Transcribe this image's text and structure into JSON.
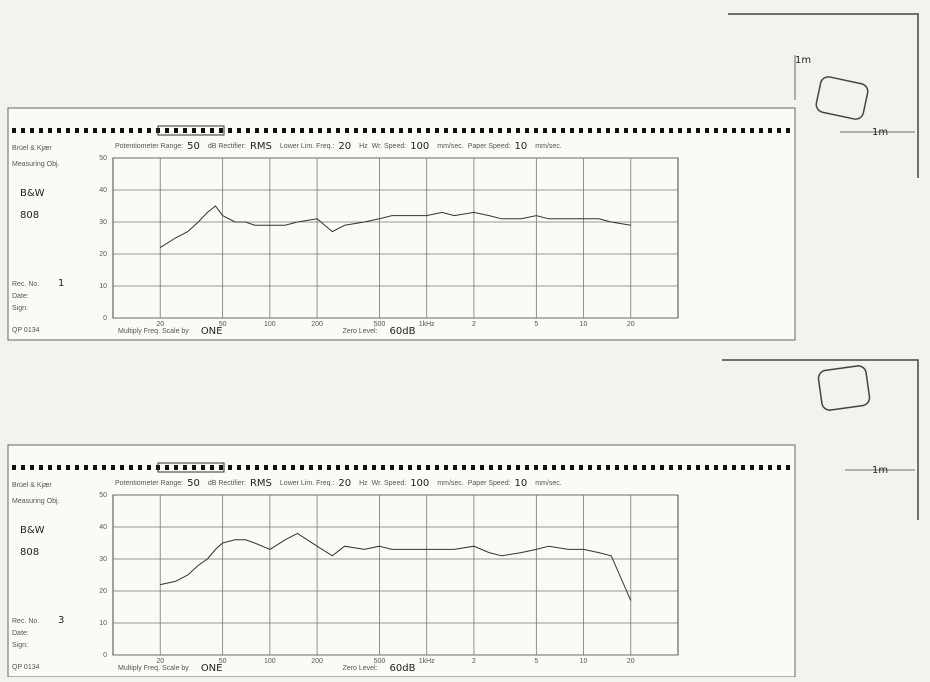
{
  "chart_data": [
    {
      "type": "line",
      "xscale": "log",
      "grid": true,
      "x": [
        20,
        25,
        30,
        35,
        40,
        45,
        50,
        60,
        70,
        80,
        100,
        125,
        150,
        200,
        250,
        300,
        400,
        500,
        600,
        800,
        1000,
        1250,
        1500,
        2000,
        2500,
        3000,
        4000,
        5000,
        6000,
        8000,
        10000,
        12500,
        15000,
        20000
      ],
      "series": [
        {
          "color": "#333333",
          "values": [
            22,
            25,
            27,
            30,
            33,
            35,
            32,
            30,
            30,
            29,
            29,
            29,
            30,
            31,
            27,
            29,
            30,
            31,
            32,
            32,
            32,
            33,
            32,
            33,
            32,
            31,
            31,
            32,
            31,
            31,
            31,
            31,
            30,
            29
          ]
        }
      ],
      "xlim": [
        10,
        40000
      ],
      "xticks": [
        20,
        50,
        100,
        200,
        500,
        {
          "value": 1000,
          "label": "1kHz"
        },
        {
          "value": 2000,
          "label": "2"
        },
        {
          "value": 5000,
          "label": "5"
        },
        {
          "value": 10000,
          "label": "10"
        },
        {
          "value": 20000,
          "label": "20"
        }
      ],
      "ylim": [
        0,
        50
      ],
      "yticks": [
        0,
        10,
        20,
        30,
        40,
        50
      ]
    },
    {
      "type": "line",
      "xscale": "log",
      "grid": true,
      "x": [
        20,
        25,
        30,
        35,
        40,
        45,
        50,
        60,
        70,
        80,
        100,
        125,
        150,
        200,
        250,
        300,
        400,
        500,
        600,
        800,
        1000,
        1250,
        1500,
        2000,
        2500,
        3000,
        4000,
        5000,
        6000,
        8000,
        10000,
        12500,
        15000,
        20000
      ],
      "series": [
        {
          "color": "#333333",
          "values": [
            22,
            23,
            25,
            28,
            30,
            33,
            35,
            36,
            36,
            35,
            33,
            36,
            38,
            34,
            31,
            34,
            33,
            34,
            33,
            33,
            33,
            33,
            33,
            34,
            32,
            31,
            32,
            33,
            34,
            33,
            33,
            32,
            31,
            17
          ]
        }
      ],
      "xlim": [
        10,
        40000
      ],
      "xticks": [
        20,
        50,
        100,
        200,
        500,
        {
          "value": 1000,
          "label": "1kHz"
        },
        {
          "value": 2000,
          "label": "2"
        },
        {
          "value": 5000,
          "label": "5"
        },
        {
          "value": 10000,
          "label": "10"
        },
        {
          "value": 20000,
          "label": "20"
        }
      ],
      "ylim": [
        0,
        50
      ],
      "yticks": [
        0,
        10,
        20,
        30,
        40,
        50
      ]
    }
  ],
  "sheets": [
    {
      "brand": "Brüel & Kjær",
      "object_label": "Measuring Obj.",
      "object": [
        "B&W",
        "808"
      ],
      "rec_label": "Rec. No.",
      "rec": "1",
      "date": "Date:",
      "sign": "Sign:",
      "code": "QP 0134",
      "header": [
        "Potentiometer Range:",
        "50",
        "dB Rectifier:",
        "RMS",
        "Lower Lim. Freq.:",
        "20",
        "Hz",
        "Wr. Speed:",
        "100",
        "mm/sec.",
        "Paper Speed:",
        "10",
        "mm/sec."
      ],
      "footer": [
        "Multiply Freq. Scale by",
        "ONE",
        "Zero Level:",
        "60dB"
      ]
    },
    {
      "brand": "Brüel & Kjær",
      "object_label": "Measuring Obj.",
      "object": [
        "B&W",
        "808"
      ],
      "rec_label": "Rec. No.",
      "rec": "3",
      "date": "Date:",
      "sign": "Sign:",
      "code": "QP 0134",
      "header": [
        "Potentiometer Range:",
        "50",
        "dB Rectifier:",
        "RMS",
        "Lower Lim. Freq.:",
        "20",
        "Hz",
        "Wr. Speed:",
        "100",
        "mm/sec.",
        "Paper Speed:",
        "10",
        "mm/sec."
      ],
      "footer": [
        "Multiply Freq. Scale by",
        "ONE",
        "Zero Level:",
        "60dB"
      ]
    }
  ],
  "placements": [
    [
      "1m",
      "1m"
    ],
    [
      "1m"
    ]
  ]
}
